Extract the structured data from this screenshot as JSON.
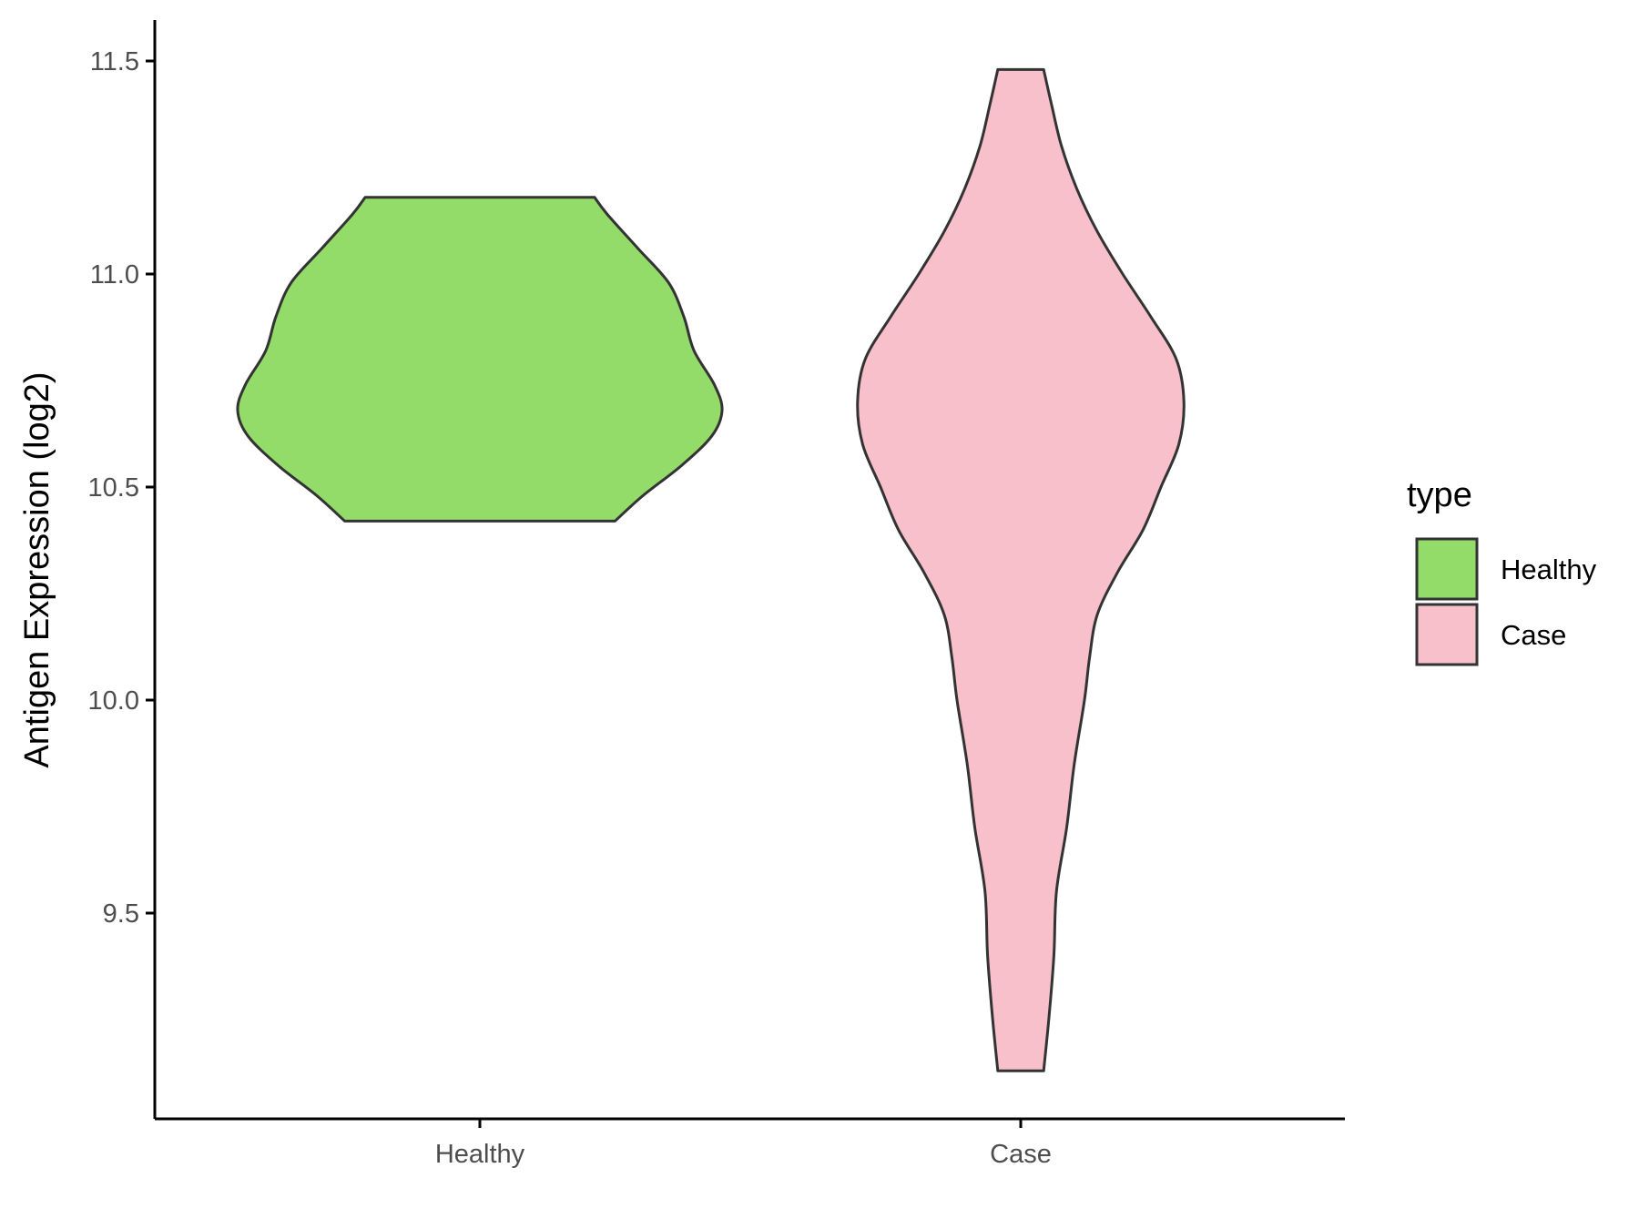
{
  "chart_data": {
    "type": "violin",
    "title": "",
    "xlabel": "",
    "ylabel": "Antigen Expression (log2)",
    "ylim": [
      9.0,
      11.6
    ],
    "yticks": [
      "9.5",
      "10.0",
      "10.5",
      "11.0",
      "11.5"
    ],
    "ytick_values": [
      9.5,
      10.0,
      10.5,
      11.0,
      11.5
    ],
    "categories": [
      "Healthy",
      "Case"
    ],
    "grid": false,
    "legend": {
      "title": "type",
      "position": "right",
      "entries": [
        "Healthy",
        "Case"
      ]
    },
    "colors": {
      "Healthy": "#93dc6a",
      "Case": "#f7c0cb",
      "outline": "#333333"
    },
    "series": [
      {
        "name": "Healthy",
        "min": 10.42,
        "max": 11.18,
        "density_profile": [
          [
            10.42,
            0.53
          ],
          [
            10.48,
            0.64
          ],
          [
            10.55,
            0.79
          ],
          [
            10.62,
            0.91
          ],
          [
            10.68,
            0.95
          ],
          [
            10.74,
            0.92
          ],
          [
            10.82,
            0.84
          ],
          [
            10.9,
            0.8
          ],
          [
            10.98,
            0.74
          ],
          [
            11.06,
            0.62
          ],
          [
            11.14,
            0.5
          ],
          [
            11.18,
            0.45
          ]
        ]
      },
      {
        "name": "Case",
        "min": 9.13,
        "max": 11.48,
        "density_profile": [
          [
            9.13,
            0.09
          ],
          [
            9.25,
            0.11
          ],
          [
            9.4,
            0.13
          ],
          [
            9.55,
            0.14
          ],
          [
            9.7,
            0.18
          ],
          [
            9.85,
            0.21
          ],
          [
            10.0,
            0.25
          ],
          [
            10.1,
            0.27
          ],
          [
            10.2,
            0.3
          ],
          [
            10.3,
            0.38
          ],
          [
            10.4,
            0.48
          ],
          [
            10.5,
            0.55
          ],
          [
            10.6,
            0.62
          ],
          [
            10.7,
            0.64
          ],
          [
            10.8,
            0.61
          ],
          [
            10.9,
            0.51
          ],
          [
            11.0,
            0.4
          ],
          [
            11.1,
            0.3
          ],
          [
            11.2,
            0.22
          ],
          [
            11.3,
            0.16
          ],
          [
            11.4,
            0.12
          ],
          [
            11.48,
            0.09
          ]
        ]
      }
    ]
  }
}
